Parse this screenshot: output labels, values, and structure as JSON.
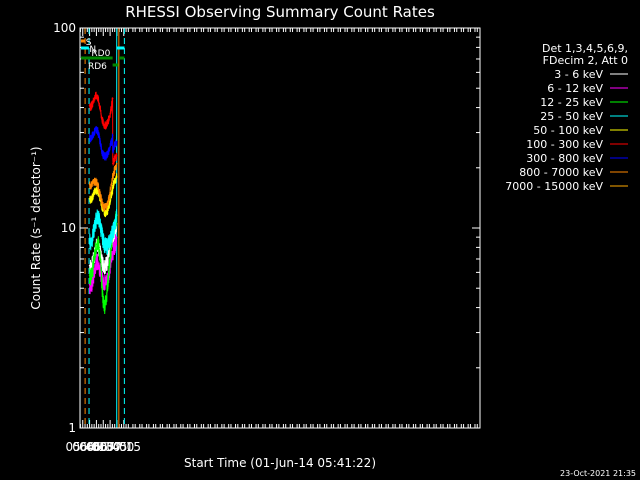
{
  "chart_data": {
    "type": "line",
    "title": "RHESSI Observing Summary Count Rates",
    "xlabel": "Start Time (01-Jun-14 05:41:22)",
    "ylabel": "Count Rate (s⁻¹ detector⁻¹)",
    "yscale": "log",
    "ylim": [
      1,
      100
    ],
    "xlim": [
      339,
      1216
    ],
    "x_unit": "minutes after 00:00 UT",
    "x_ticks": [
      {
        "value": 345,
        "label": "05:45"
      },
      {
        "value": 360,
        "label": "06:00"
      },
      {
        "value": 375,
        "label": "06:15"
      },
      {
        "value": 390,
        "label": "06:30"
      },
      {
        "value": 405,
        "label": "06:45"
      },
      {
        "value": 420,
        "label": "07:00"
      },
      {
        "value": 435,
        "label": "07:15"
      }
    ],
    "y_ticks": [
      {
        "value": 1,
        "label": "1"
      },
      {
        "value": 10,
        "label": "10"
      },
      {
        "value": 100,
        "label": "100"
      }
    ],
    "legend": {
      "header": [
        "Det 1,3,4,5,6,9,",
        "FDecim 2, Att 0"
      ],
      "position": "right"
    },
    "series": [
      {
        "name": "3 - 6 keV",
        "color": "#ffffff",
        "x": [
          360,
          363,
          366,
          369,
          372,
          375,
          378,
          381,
          384,
          387,
          390,
          393,
          396,
          399,
          402,
          405,
          408,
          410.5,
          411,
          414,
          417,
          419.5
        ],
        "y": [
          6.5,
          6.4,
          6.6,
          7.0,
          7.6,
          8.1,
          8.2,
          7.9,
          7.4,
          6.9,
          6.6,
          6.5,
          6.6,
          6.8,
          7.2,
          7.9,
          8.6,
          9.4,
          8.8,
          9.2,
          9.9,
          10.5
        ]
      },
      {
        "name": "6 - 12 keV",
        "color": "#ff00ff",
        "x": [
          360,
          363,
          366,
          369,
          372,
          375,
          378,
          381,
          384,
          387,
          390,
          393,
          396,
          399,
          402,
          405,
          408,
          410.5,
          411,
          414,
          417,
          419.5
        ],
        "y": [
          5.2,
          5.1,
          5.3,
          5.7,
          6.3,
          6.7,
          6.8,
          6.5,
          6.1,
          5.6,
          5.4,
          5.3,
          5.4,
          5.6,
          5.9,
          6.4,
          7.1,
          7.6,
          7.6,
          8.0,
          8.5,
          9.0
        ]
      },
      {
        "name": "12 - 25 keV",
        "color": "#00ff00",
        "x": [
          360,
          363,
          366,
          369,
          372,
          375,
          378,
          381,
          384,
          387,
          390,
          393,
          396,
          399,
          402,
          405,
          408,
          410.5,
          411,
          414,
          417,
          419.5
        ],
        "y": [
          5.8,
          5.7,
          6.0,
          6.8,
          7.6,
          8.3,
          8.6,
          8.0,
          6.8,
          5.2,
          4.3,
          4.1,
          4.4,
          5.0,
          6.0,
          7.0,
          8.2,
          9.5,
          9.4,
          10.1,
          10.8,
          11.5
        ]
      },
      {
        "name": "25 - 50 keV",
        "color": "#00ffff",
        "x": [
          360,
          363,
          366,
          369,
          372,
          375,
          378,
          381,
          384,
          387,
          390,
          393,
          396,
          399,
          402,
          405,
          408,
          410.5,
          411,
          414,
          417,
          419.5
        ],
        "y": [
          8.6,
          8.5,
          8.9,
          9.6,
          10.4,
          11.2,
          11.5,
          11.0,
          10.2,
          9.4,
          8.7,
          8.3,
          8.1,
          8.2,
          8.4,
          8.7,
          9.2,
          9.8,
          9.6,
          10.0,
          10.8,
          11.6
        ]
      },
      {
        "name": "50 - 100 keV",
        "color": "#ffff00",
        "x": [
          360,
          363,
          366,
          369,
          372,
          375,
          378,
          381,
          384,
          387,
          390,
          393,
          396,
          399,
          402,
          405,
          408,
          410.5,
          411,
          414,
          417,
          419.5
        ],
        "y": [
          14.0,
          13.9,
          14.2,
          14.8,
          15.2,
          15.5,
          15.3,
          14.7,
          13.8,
          12.9,
          12.2,
          11.9,
          11.9,
          12.2,
          12.8,
          13.7,
          14.8,
          15.5,
          16.3,
          17.0,
          17.5,
          18.0
        ]
      },
      {
        "name": "100 - 300 keV",
        "color": "#ff0000",
        "x": [
          360,
          363,
          366,
          369,
          372,
          375,
          378,
          381,
          384,
          387,
          390,
          393,
          396,
          399,
          402,
          405,
          408,
          410.5,
          411,
          414,
          417,
          419.5
        ],
        "y": [
          41.0,
          40.5,
          41.8,
          43.5,
          45.2,
          46.0,
          44.8,
          42.0,
          38.5,
          35.2,
          33.2,
          32.5,
          32.7,
          33.6,
          35.0,
          37.2,
          40.5,
          44.5,
          21.0,
          22.0,
          22.5,
          23.0
        ]
      },
      {
        "name": "300 - 800 keV",
        "color": "#0000ff",
        "x": [
          360,
          363,
          366,
          369,
          372,
          375,
          378,
          381,
          384,
          387,
          390,
          393,
          396,
          399,
          402,
          405,
          408,
          410.5,
          411,
          414,
          417,
          419.5
        ],
        "y": [
          28.5,
          28.0,
          28.8,
          29.8,
          30.8,
          31.3,
          30.4,
          28.5,
          26.2,
          24.2,
          23.2,
          22.8,
          22.9,
          23.4,
          24.2,
          25.4,
          27.0,
          29.0,
          24.5,
          25.6,
          26.4,
          27.0
        ]
      },
      {
        "name": "800 - 7000 keV",
        "color": "#ff8800",
        "x": [
          360,
          363,
          366,
          369,
          372,
          375,
          378,
          381,
          384,
          387,
          390,
          393,
          396,
          399,
          402,
          405,
          408,
          410.5,
          411,
          414,
          417,
          419.5
        ],
        "y": [
          16.5,
          16.3,
          16.7,
          17.0,
          17.2,
          17.0,
          16.4,
          15.5,
          14.4,
          13.5,
          12.9,
          12.7,
          12.8,
          13.2,
          13.9,
          15.0,
          16.4,
          18.0,
          18.2,
          19.2,
          20.0,
          21.0
        ]
      },
      {
        "name": "7000 - 15000 keV",
        "color": "#ffaa00",
        "x": [],
        "y": []
      }
    ],
    "attenuator_bars": [
      {
        "label": "S",
        "color": "#ff8800",
        "x": [
          339,
          350.5
        ],
        "level": "top",
        "label_x": 351.5
      },
      {
        "label": "N",
        "color": "#00ffff",
        "x": [
          339,
          358.5
        ],
        "level": "mid",
        "label_x": 359.5
      },
      {
        "label": "N",
        "color": "#00ffff",
        "x": [
          419.5,
          436.5
        ],
        "level": "mid",
        "label_x": null
      },
      {
        "label": "RD0",
        "color": "#008800",
        "x": [
          339,
          410.5
        ],
        "level": "low",
        "label_x": 364.0
      },
      {
        "label": "",
        "color": "#008800",
        "x": [
          410.5,
          423.5
        ],
        "level": "lowest",
        "label_x": null
      },
      {
        "label": "",
        "color": "#008800",
        "x": [
          424.5,
          436.5
        ],
        "level": "low",
        "label_x": null
      },
      {
        "label": "RD6",
        "color": "#008800",
        "x": [
          361.6,
          362.4
        ],
        "level": "lowest",
        "label_x": 356.5
      }
    ],
    "vlines": [
      {
        "x": 339.1,
        "color": "#00ffff",
        "style": "solid"
      },
      {
        "x": 350.2,
        "color": "#ff8800",
        "style": "dashed"
      },
      {
        "x": 358.8,
        "color": "#00ffff",
        "style": "dashed"
      },
      {
        "x": 419.5,
        "color": "#00ffff",
        "style": "solid"
      },
      {
        "x": 424.2,
        "color": "#ff8800",
        "style": "solid"
      },
      {
        "x": 436.3,
        "color": "#00ffff",
        "style": "dashed"
      }
    ]
  },
  "footer": {
    "timestamp": "23-Oct-2021 21:35"
  }
}
